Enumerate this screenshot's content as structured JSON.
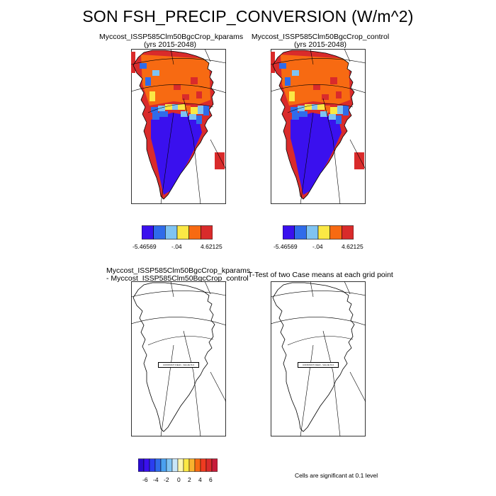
{
  "title": "SON FSH_PRECIP_CONVERSION (W/m^2)",
  "colors": {
    "blue_dark": "#3a10ee",
    "blue": "#2f6bea",
    "blue_light": "#7fc3f2",
    "yellow": "#fbe845",
    "orange": "#f76a12",
    "red": "#d92b2b",
    "outline": "#000000"
  },
  "panels": [
    {
      "id": "top-left",
      "title_line1": "Myccost_ISSP585Clm50BgcCrop_kparams",
      "title_line2": "(yrs 2015-2048)"
    },
    {
      "id": "top-right",
      "title_line1": "Myccost_ISSP585Clm50BgcCrop_control",
      "title_line2": "(yrs 2015-2048)"
    },
    {
      "id": "bottom-left",
      "title_line1": "Myccost_ISSP585Clm50BgcCrop_kparams",
      "title_line2": "- Myccost_ISSP585Clm50BgcCrop_control",
      "inner_label": "CONSTANT FIELD - VALUE IS 0"
    },
    {
      "id": "bottom-right",
      "title_line1": "T-Test of two Case means at each grid point",
      "inner_label": "CONSTANT FIELD - VALUE IS 0"
    }
  ],
  "colorbar_top": {
    "labels": [
      "-5.46569",
      "-.04",
      "4.62125"
    ]
  },
  "colorbar_bottom": {
    "labels": [
      "-6",
      "-4",
      "-2",
      "0",
      "2",
      "4",
      "6"
    ]
  },
  "significance_note": "Cells are significant at 0.1 level",
  "chart_data": [
    {
      "type": "heatmap",
      "title": "Myccost_ISSP585Clm50BgcCrop_kparams (yrs 2015-2048)",
      "levels": [
        -5.46569,
        -0.04,
        4.62125
      ],
      "bins": 6,
      "pattern": "south and center strongly negative (dark blue), north strongly positive (orange/red), coastal margins red"
    },
    {
      "type": "heatmap",
      "title": "Myccost_ISSP585Clm50BgcCrop_control (yrs 2015-2048)",
      "levels": [
        -5.46569,
        -0.04,
        4.62125
      ],
      "bins": 6,
      "pattern": "same as kparams case"
    },
    {
      "type": "heatmap",
      "title": "Myccost_ISSP585Clm50BgcCrop_kparams - Myccost_ISSP585Clm50BgcCrop_control",
      "constant_value": 0,
      "levels": [
        -6,
        -4,
        -2,
        0,
        2,
        4,
        6
      ]
    },
    {
      "type": "heatmap",
      "title": "T-Test of two Case means at each grid point",
      "constant_value": 0
    }
  ]
}
